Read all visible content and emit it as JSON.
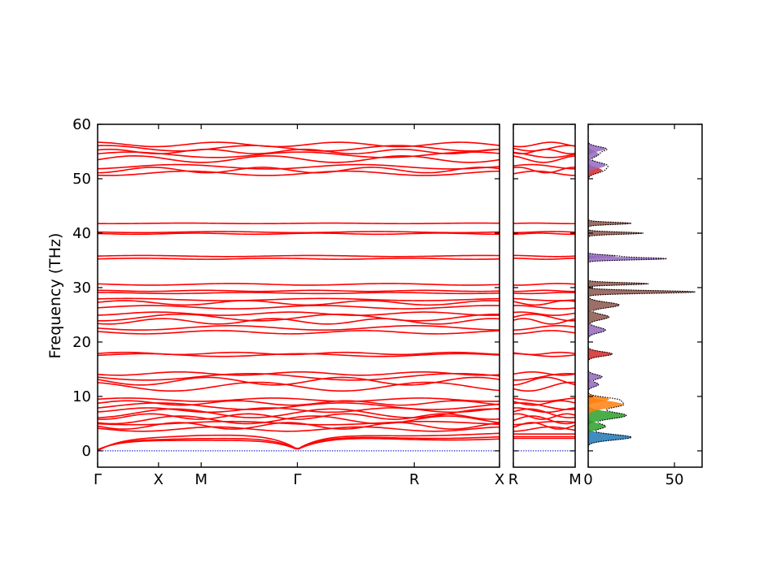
{
  "chart_data": {
    "type": "line",
    "title": "",
    "ylabel": "Frequency (THz)",
    "ylim": [
      -3,
      60
    ],
    "yticks": [
      0,
      10,
      20,
      30,
      40,
      50,
      60
    ],
    "band_color": "#ff0000",
    "zero_line_color": "#0000cc",
    "panels": [
      {
        "name": "band-structure-main",
        "kpoints": [
          "Γ",
          "X",
          "M",
          "Γ",
          "R",
          "X"
        ],
        "kpoint_positions": [
          0,
          0.5,
          0.85,
          1.64,
          2.6,
          3.3
        ],
        "xlim": [
          0,
          3.3
        ],
        "show_tick_label_y": true
      },
      {
        "name": "band-structure-rm",
        "kpoints": [
          "R",
          "M"
        ],
        "kpoint_positions": [
          0,
          1
        ],
        "xlim": [
          0,
          1
        ],
        "show_tick_label_y": false
      }
    ],
    "bands": {
      "acoustic": [
        {
          "gamma": 0,
          "zone": 2.3
        },
        {
          "gamma": 0,
          "zone": 2.6
        },
        {
          "gamma": 0,
          "zone": 3.1
        }
      ],
      "optical": [
        {
          "center": 4.0,
          "amplitude": 0.4,
          "period": 1.2
        },
        {
          "center": 4.6,
          "amplitude": 0.6,
          "period": 0.9
        },
        {
          "center": 5.1,
          "amplitude": 0.3,
          "period": 1.6
        },
        {
          "center": 5.7,
          "amplitude": 0.7,
          "period": 1.1
        },
        {
          "center": 6.3,
          "amplitude": 0.5,
          "period": 0.8
        },
        {
          "center": 6.9,
          "amplitude": 0.8,
          "period": 1.3
        },
        {
          "center": 7.5,
          "amplitude": 0.4,
          "period": 1.0
        },
        {
          "center": 8.2,
          "amplitude": 0.6,
          "period": 1.5
        },
        {
          "center": 8.8,
          "amplitude": 0.4,
          "period": 0.9
        },
        {
          "center": 9.4,
          "amplitude": 0.3,
          "period": 1.2
        },
        {
          "center": 11.8,
          "amplitude": 0.8,
          "period": 1.4
        },
        {
          "center": 12.8,
          "amplitude": 0.7,
          "period": 1.1
        },
        {
          "center": 13.6,
          "amplitude": 0.6,
          "period": 1.7
        },
        {
          "center": 14.2,
          "amplitude": 0.3,
          "period": 1.0
        },
        {
          "center": 17.6,
          "amplitude": 0.25,
          "period": 1.3
        },
        {
          "center": 17.9,
          "amplitude": 0.2,
          "period": 0.9
        },
        {
          "center": 21.8,
          "amplitude": 0.3,
          "period": 1.2
        },
        {
          "center": 22.6,
          "amplitude": 0.4,
          "period": 1.5
        },
        {
          "center": 23.8,
          "amplitude": 0.5,
          "period": 0.9
        },
        {
          "center": 24.5,
          "amplitude": 0.6,
          "period": 1.3
        },
        {
          "center": 25.2,
          "amplitude": 0.3,
          "period": 1.1
        },
        {
          "center": 26.4,
          "amplitude": 0.3,
          "period": 1.4
        },
        {
          "center": 27.2,
          "amplitude": 0.4,
          "period": 1.0
        },
        {
          "center": 27.8,
          "amplitude": 0.2,
          "period": 1.6
        },
        {
          "center": 29.0,
          "amplitude": 0.1,
          "period": 1.2
        },
        {
          "center": 29.4,
          "amplitude": 0.1,
          "period": 0.9
        },
        {
          "center": 30.6,
          "amplitude": 0.15,
          "period": 1.3
        },
        {
          "center": 35.3,
          "amplitude": 0.1,
          "period": 1.1
        },
        {
          "center": 35.8,
          "amplitude": 0.1,
          "period": 1.4
        },
        {
          "center": 39.9,
          "amplitude": 0.1,
          "period": 1.0
        },
        {
          "center": 40.2,
          "amplitude": 0.1,
          "period": 1.3
        },
        {
          "center": 41.8,
          "amplitude": 0.05,
          "period": 1.2
        },
        {
          "center": 51.0,
          "amplitude": 0.4,
          "period": 1.3
        },
        {
          "center": 51.6,
          "amplitude": 0.5,
          "period": 0.9
        },
        {
          "center": 52.2,
          "amplitude": 0.4,
          "period": 1.5
        },
        {
          "center": 53.6,
          "amplitude": 0.6,
          "period": 1.1
        },
        {
          "center": 54.4,
          "amplitude": 0.5,
          "period": 1.4
        },
        {
          "center": 55.0,
          "amplitude": 0.4,
          "period": 0.8
        },
        {
          "center": 55.6,
          "amplitude": 0.5,
          "period": 1.2
        },
        {
          "center": 56.3,
          "amplitude": 0.4,
          "period": 1.0
        }
      ]
    },
    "dos": {
      "xlim": [
        0,
        66
      ],
      "xticks": [
        0,
        50
      ],
      "yticks": [
        0,
        10,
        20,
        30,
        40,
        50,
        60
      ],
      "total_line_color": "#000000",
      "peaks": [
        {
          "f": 2.5,
          "v": 25,
          "w": 0.5,
          "color": "#1f77b4"
        },
        {
          "f": 4.5,
          "v": 10,
          "w": 0.5,
          "color": "#2ca02c"
        },
        {
          "f": 6.5,
          "v": 22,
          "w": 0.6,
          "color": "#2ca02c"
        },
        {
          "f": 8.5,
          "v": 20,
          "w": 0.6,
          "color": "#ff7f0e"
        },
        {
          "f": 9.5,
          "v": 12,
          "w": 0.4,
          "color": "#ff7f0e"
        },
        {
          "f": 12.2,
          "v": 6,
          "w": 0.4,
          "color": "#9467bd"
        },
        {
          "f": 13.6,
          "v": 8,
          "w": 0.4,
          "color": "#9467bd"
        },
        {
          "f": 17.8,
          "v": 14,
          "w": 0.4,
          "color": "#d62728"
        },
        {
          "f": 22.2,
          "v": 10,
          "w": 0.5,
          "color": "#9467bd"
        },
        {
          "f": 24.6,
          "v": 12,
          "w": 0.5,
          "color": "#8c564b"
        },
        {
          "f": 26.8,
          "v": 18,
          "w": 0.5,
          "color": "#8c564b"
        },
        {
          "f": 29.2,
          "v": 62,
          "w": 0.25,
          "color": "#8c564b"
        },
        {
          "f": 30.7,
          "v": 35,
          "w": 0.2,
          "color": "#8c564b"
        },
        {
          "f": 35.3,
          "v": 45,
          "w": 0.2,
          "color": "#9467bd"
        },
        {
          "f": 35.8,
          "v": 16,
          "w": 0.2,
          "color": "#9467bd"
        },
        {
          "f": 40.0,
          "v": 32,
          "w": 0.2,
          "color": "#8c564b"
        },
        {
          "f": 41.8,
          "v": 25,
          "w": 0.2,
          "color": "#8c564b"
        },
        {
          "f": 51.5,
          "v": 8,
          "w": 0.5,
          "color": "#d62728"
        },
        {
          "f": 52.5,
          "v": 10,
          "w": 0.5,
          "color": "#9467bd"
        },
        {
          "f": 54.5,
          "v": 6,
          "w": 0.5,
          "color": "#9467bd"
        },
        {
          "f": 55.5,
          "v": 10,
          "w": 0.4,
          "color": "#9467bd"
        }
      ]
    }
  }
}
